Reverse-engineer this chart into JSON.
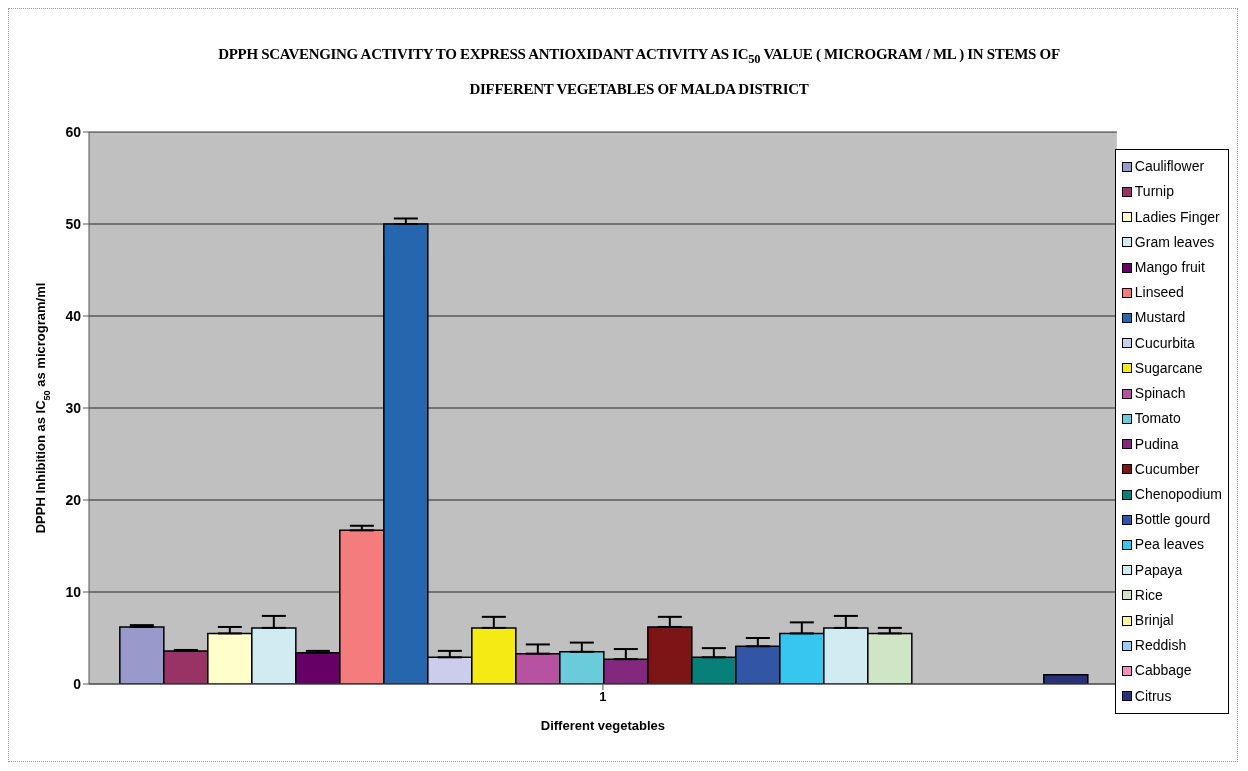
{
  "chart_data": {
    "type": "bar",
    "title": "DPPH SCAVENGING ACTIVITY TO EXPRESS ANTIOXIDANT ACTIVITY AS IC$_{50}$ VALUE ( MICROGRAM /  ML ) IN STEMS OF DIFFERENT VEGETABLES OF MALDA DISTRICT",
    "xlabel": "Different vegetables",
    "ylabel": "DPPH Inhibition as IC$_{50}$ as microgram/ml",
    "categories": [
      "1"
    ],
    "ylim": [
      0,
      60
    ],
    "yticks": [
      0,
      10,
      20,
      30,
      40,
      50,
      60
    ],
    "grid": "y",
    "legend": "right",
    "series": [
      {
        "name": "Cauliflower",
        "color": "#9999cc",
        "values": [
          6.2
        ],
        "errors": [
          [
            6.2,
            6.4
          ]
        ]
      },
      {
        "name": "Turnip",
        "color": "#993366",
        "values": [
          3.6
        ],
        "errors": [
          [
            3.6,
            3.7
          ]
        ]
      },
      {
        "name": "Ladies Finger",
        "color": "#ffffcc",
        "values": [
          5.5
        ],
        "errors": [
          [
            5.5,
            6.2
          ]
        ]
      },
      {
        "name": "Gram leaves",
        "color": "#d0ecf2",
        "values": [
          6.1
        ],
        "errors": [
          [
            6.1,
            7.4
          ]
        ]
      },
      {
        "name": "Mango fruit",
        "color": "#660066",
        "values": [
          3.4
        ],
        "errors": [
          [
            3.4,
            3.6
          ]
        ]
      },
      {
        "name": "Linseed",
        "color": "#f47c7c",
        "values": [
          16.7
        ],
        "errors": [
          [
            16.7,
            17.2
          ]
        ]
      },
      {
        "name": "Mustard",
        "color": "#2566ae",
        "values": [
          50
        ],
        "errors": [
          [
            50,
            50.6
          ]
        ]
      },
      {
        "name": "Cucurbita",
        "color": "#ccccec",
        "values": [
          2.9
        ],
        "errors": [
          [
            2.9,
            3.6
          ]
        ]
      },
      {
        "name": "Sugarcane",
        "color": "#f3eb13",
        "values": [
          6.1
        ],
        "errors": [
          [
            6.1,
            7.3
          ]
        ]
      },
      {
        "name": "Spinach",
        "color": "#b752a0",
        "values": [
          3.3
        ],
        "errors": [
          [
            3.3,
            4.3
          ]
        ]
      },
      {
        "name": "Tomato",
        "color": "#6accdb",
        "values": [
          3.5
        ],
        "errors": [
          [
            3.5,
            4.5
          ]
        ]
      },
      {
        "name": "Pudina",
        "color": "#82287f",
        "values": [
          2.7
        ],
        "errors": [
          [
            2.7,
            3.8
          ]
        ]
      },
      {
        "name": "Cucumber",
        "color": "#7d1416",
        "values": [
          6.2
        ],
        "errors": [
          [
            6.2,
            7.3
          ]
        ]
      },
      {
        "name": "Chenopodium",
        "color": "#078079",
        "values": [
          2.9
        ],
        "errors": [
          [
            2.9,
            3.9
          ]
        ]
      },
      {
        "name": "Bottle gourd",
        "color": "#3355a5",
        "values": [
          4.1
        ],
        "errors": [
          [
            4.1,
            5.0
          ]
        ]
      },
      {
        "name": "Pea leaves",
        "color": "#36c6f0",
        "values": [
          5.5
        ],
        "errors": [
          [
            5.5,
            6.7
          ]
        ]
      },
      {
        "name": "Papaya",
        "color": "#d0ecf2",
        "values": [
          6.1
        ],
        "errors": [
          [
            6.1,
            7.4
          ]
        ]
      },
      {
        "name": "Rice",
        "color": "#d0e5c5",
        "values": [
          5.5
        ],
        "errors": [
          [
            5.5,
            6.1
          ]
        ]
      },
      {
        "name": "Brinjal",
        "color": "#fff599",
        "values": [
          null
        ]
      },
      {
        "name": "Reddish",
        "color": "#99ccff",
        "values": [
          null
        ]
      },
      {
        "name": "Cabbage",
        "color": "#f48fc0",
        "values": [
          null
        ]
      },
      {
        "name": "Citrus",
        "color": "#2a2f7a",
        "values": [
          1.0
        ]
      }
    ]
  }
}
